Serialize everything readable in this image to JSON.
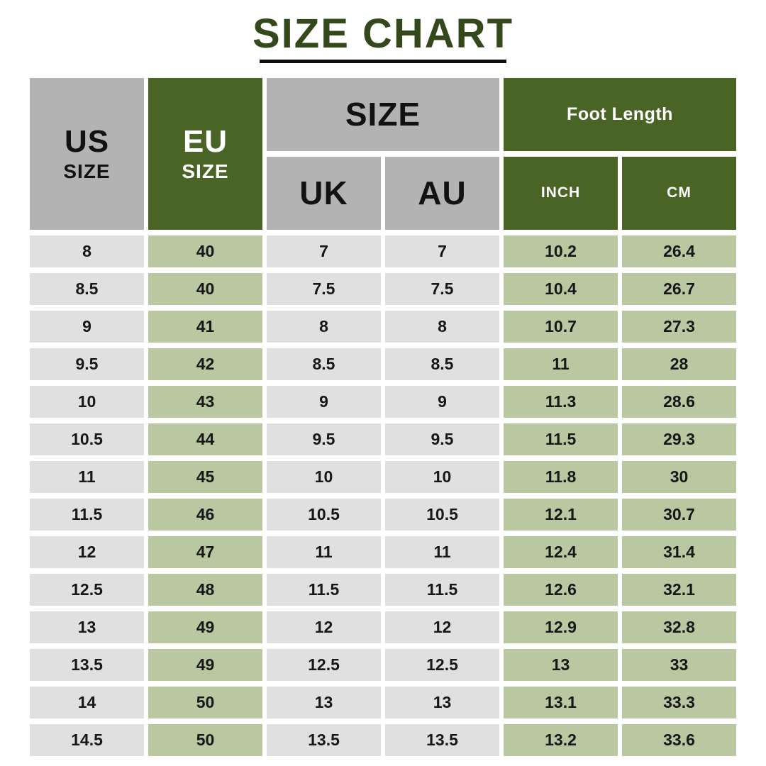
{
  "title": {
    "text": "SIZE CHART"
  },
  "colors": {
    "title_green": "#33491b",
    "header_green": "#4a6426",
    "header_gray": "#b3b3b3",
    "cell_green": "#b9c8a1",
    "cell_gray": "#e0e0e0",
    "underline_black": "#0d0d0d",
    "background": "#ffffff"
  },
  "table": {
    "headers": {
      "us_line1": "US",
      "us_line2": "SIZE",
      "eu_line1": "EU",
      "eu_line2": "SIZE",
      "size_group": "SIZE",
      "uk": "UK",
      "au": "AU",
      "foot_length_group": "Foot Length",
      "inch": "INCH",
      "cm": "CM"
    },
    "column_keys": [
      "us",
      "eu",
      "uk",
      "au",
      "inch",
      "cm"
    ],
    "column_shades": {
      "us": "gray",
      "eu": "green",
      "uk": "gray",
      "au": "gray",
      "inch": "green",
      "cm": "green"
    }
  },
  "chart_data": {
    "type": "table",
    "title": "SIZE CHART",
    "columns": [
      "US SIZE",
      "EU SIZE",
      "UK",
      "AU",
      "INCH",
      "CM"
    ],
    "column_groups": [
      {
        "label": "SIZE",
        "columns": [
          "UK",
          "AU"
        ]
      },
      {
        "label": "Foot Length",
        "columns": [
          "INCH",
          "CM"
        ]
      }
    ],
    "rows": [
      {
        "us": "8",
        "eu": "40",
        "uk": "7",
        "au": "7",
        "inch": "10.2",
        "cm": "26.4"
      },
      {
        "us": "8.5",
        "eu": "40",
        "uk": "7.5",
        "au": "7.5",
        "inch": "10.4",
        "cm": "26.7"
      },
      {
        "us": "9",
        "eu": "41",
        "uk": "8",
        "au": "8",
        "inch": "10.7",
        "cm": "27.3"
      },
      {
        "us": "9.5",
        "eu": "42",
        "uk": "8.5",
        "au": "8.5",
        "inch": "11",
        "cm": "28"
      },
      {
        "us": "10",
        "eu": "43",
        "uk": "9",
        "au": "9",
        "inch": "11.3",
        "cm": "28.6"
      },
      {
        "us": "10.5",
        "eu": "44",
        "uk": "9.5",
        "au": "9.5",
        "inch": "11.5",
        "cm": "29.3"
      },
      {
        "us": "11",
        "eu": "45",
        "uk": "10",
        "au": "10",
        "inch": "11.8",
        "cm": "30"
      },
      {
        "us": "11.5",
        "eu": "46",
        "uk": "10.5",
        "au": "10.5",
        "inch": "12.1",
        "cm": "30.7"
      },
      {
        "us": "12",
        "eu": "47",
        "uk": "11",
        "au": "11",
        "inch": "12.4",
        "cm": "31.4"
      },
      {
        "us": "12.5",
        "eu": "48",
        "uk": "11.5",
        "au": "11.5",
        "inch": "12.6",
        "cm": "32.1"
      },
      {
        "us": "13",
        "eu": "49",
        "uk": "12",
        "au": "12",
        "inch": "12.9",
        "cm": "32.8"
      },
      {
        "us": "13.5",
        "eu": "49",
        "uk": "12.5",
        "au": "12.5",
        "inch": "13",
        "cm": "33"
      },
      {
        "us": "14",
        "eu": "50",
        "uk": "13",
        "au": "13",
        "inch": "13.1",
        "cm": "33.3"
      },
      {
        "us": "14.5",
        "eu": "50",
        "uk": "13.5",
        "au": "13.5",
        "inch": "13.2",
        "cm": "33.6"
      }
    ]
  }
}
